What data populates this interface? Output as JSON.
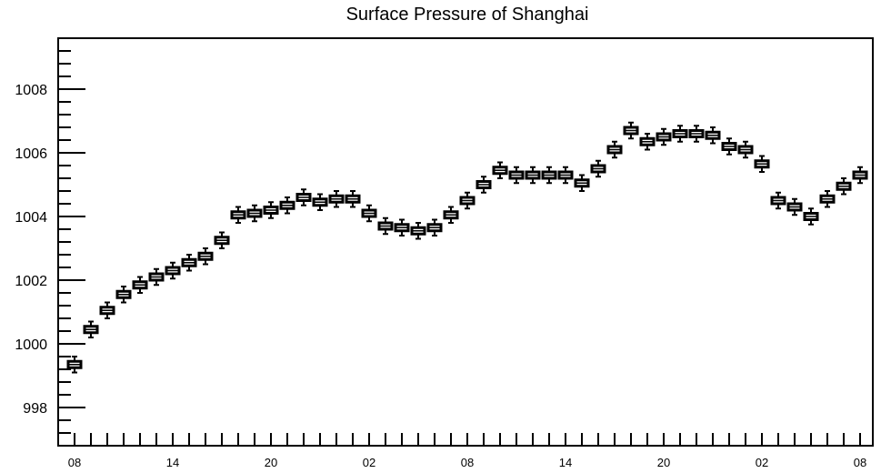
{
  "chart_data": {
    "type": "boxplot",
    "title": "Surface Pressure of Shanghai",
    "xlabel": "",
    "ylabel": "",
    "ylim": [
      996.8,
      1009.6
    ],
    "y_ticks": [
      998,
      1000,
      1002,
      1004,
      1006,
      1008
    ],
    "x_tick_labels": [
      "08",
      "14",
      "20",
      "02",
      "08",
      "14",
      "20",
      "02",
      "08"
    ],
    "x_tick_every": 6,
    "grid": false,
    "legend": "none",
    "box_fill": "#ffffff",
    "box_stroke": "#000000",
    "medians": [
      999.35,
      1000.45,
      1001.05,
      1001.55,
      1001.85,
      1002.1,
      1002.3,
      1002.55,
      1002.75,
      1003.25,
      1004.05,
      1004.1,
      1004.2,
      1004.35,
      1004.6,
      1004.45,
      1004.55,
      1004.55,
      1004.1,
      1003.7,
      1003.65,
      1003.55,
      1003.65,
      1004.05,
      1004.5,
      1005.0,
      1005.45,
      1005.3,
      1005.3,
      1005.3,
      1005.3,
      1005.05,
      1005.5,
      1006.1,
      1006.7,
      1006.35,
      1006.5,
      1006.6,
      1006.6,
      1006.55,
      1006.2,
      1006.1,
      1005.65,
      1004.5,
      1004.3,
      1004.0,
      1004.55,
      1004.95,
      1005.3
    ],
    "box_half_height": 0.1,
    "whisker_extent": 0.25
  }
}
